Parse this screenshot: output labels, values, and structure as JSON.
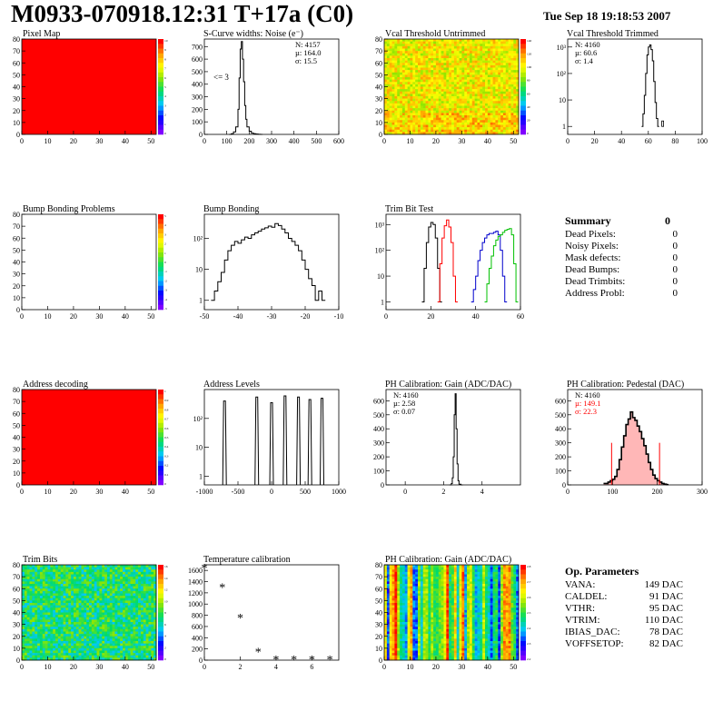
{
  "header": {
    "title": "M0933-070918.12:31 T+17a (C0)",
    "date": "Tue Sep 18 19:18:53 2007"
  },
  "colors": {
    "red": "#ff0000",
    "black": "#000000",
    "green": "#00c000",
    "blue": "#0000cc",
    "pink": "#ff9999"
  },
  "chart_data": [
    {
      "id": "pixel-map",
      "type": "heatmap",
      "title": "Pixel Map",
      "xlim": [
        0,
        52
      ],
      "ylim": [
        0,
        80
      ],
      "xticks": [
        "0",
        "10",
        "20",
        "30",
        "40",
        "50"
      ],
      "yticks": [
        "0",
        "10",
        "20",
        "30",
        "40",
        "50",
        "60",
        "70",
        "80"
      ],
      "fill": "uniform",
      "value": 10,
      "palette_ticks": [
        "10",
        "9",
        "8",
        "7",
        "6",
        "5",
        "4",
        "3",
        "2",
        "1",
        "0"
      ]
    },
    {
      "id": "scurve-noise",
      "type": "line",
      "title": "S-Curve widths: Noise (e⁻)",
      "xlim": [
        0,
        600
      ],
      "ylim": [
        0,
        760
      ],
      "xticks": [
        "0",
        "100",
        "200",
        "300",
        "400",
        "500",
        "600"
      ],
      "yticks": [
        "0",
        "100",
        "200",
        "300",
        "400",
        "500",
        "600",
        "700"
      ],
      "stats": [
        "N: 4157",
        "µ: 164.0",
        "σ: 15.5"
      ],
      "annotation": "<= 3",
      "x": [
        110,
        120,
        130,
        140,
        150,
        155,
        160,
        165,
        170,
        175,
        180,
        185,
        190,
        200,
        210,
        220,
        230,
        240,
        250
      ],
      "y": [
        0,
        5,
        20,
        60,
        200,
        450,
        680,
        740,
        600,
        420,
        230,
        120,
        60,
        25,
        10,
        5,
        3,
        1,
        0
      ]
    },
    {
      "id": "vcal-untrimmed",
      "type": "heatmap",
      "title": "Vcal Threshold Untrimmed",
      "xlim": [
        0,
        52
      ],
      "ylim": [
        0,
        80
      ],
      "xticks": [
        "0",
        "10",
        "20",
        "30",
        "40",
        "50"
      ],
      "yticks": [
        "0",
        "10",
        "20",
        "30",
        "40",
        "50",
        "60",
        "70",
        "80"
      ],
      "fill": "noisy",
      "dominant": "yellow-orange",
      "palette_ticks": [
        "140",
        "120",
        "100",
        "80",
        "60",
        "40",
        "20",
        "0"
      ]
    },
    {
      "id": "vcal-trimmed",
      "type": "line",
      "title": "Vcal Threshold Trimmed",
      "log_y": true,
      "xlim": [
        0,
        100
      ],
      "ylim": [
        0.5,
        2000
      ],
      "xticks": [
        "0",
        "20",
        "40",
        "60",
        "80",
        "100"
      ],
      "yticks": [
        "1",
        "10",
        "10²",
        "10³"
      ],
      "stats": [
        "N: 4160",
        "µ: 60.6",
        "σ:  1.4"
      ],
      "x": [
        55,
        56,
        57,
        58,
        59,
        60,
        61,
        62,
        63,
        64,
        65,
        66,
        67
      ],
      "y": [
        1,
        3,
        15,
        100,
        500,
        1000,
        1200,
        800,
        300,
        50,
        8,
        2,
        1
      ],
      "outlier": {
        "x": 70,
        "y": 1
      }
    },
    {
      "id": "bump-bonding-problems",
      "type": "heatmap",
      "title": "Bump Bonding Problems",
      "xlim": [
        0,
        52
      ],
      "ylim": [
        0,
        80
      ],
      "xticks": [
        "0",
        "10",
        "20",
        "30",
        "40",
        "50"
      ],
      "yticks": [
        "0",
        "10",
        "20",
        "30",
        "40",
        "50",
        "60",
        "70",
        "80"
      ],
      "fill": "empty",
      "palette_ticks": [
        "5",
        "4",
        "3",
        "2",
        "1",
        "0",
        "-1",
        "-2",
        "-3",
        "-4",
        "-5"
      ]
    },
    {
      "id": "bump-bonding",
      "type": "line",
      "title": "Bump Bonding",
      "log_y": true,
      "xlim": [
        -50,
        -10
      ],
      "ylim": [
        0.5,
        600
      ],
      "xticks": [
        "-50",
        "-40",
        "-30",
        "-20",
        "-10"
      ],
      "yticks": [
        "1",
        "10",
        "10²"
      ],
      "x": [
        -48,
        -47,
        -46,
        -45,
        -44,
        -43,
        -42,
        -41,
        -40,
        -39,
        -38,
        -37,
        -36,
        -35,
        -34,
        -33,
        -32,
        -31,
        -30,
        -29,
        -28,
        -27,
        -26,
        -25,
        -24,
        -23,
        -22,
        -21,
        -20,
        -19,
        -18,
        -17,
        -16,
        -15
      ],
      "y": [
        1,
        2,
        4,
        8,
        20,
        40,
        60,
        80,
        70,
        90,
        110,
        100,
        130,
        150,
        170,
        200,
        220,
        250,
        230,
        300,
        260,
        200,
        150,
        100,
        80,
        60,
        40,
        20,
        10,
        5,
        3,
        1,
        2,
        1
      ]
    },
    {
      "id": "trim-bit-test",
      "type": "line",
      "title": "Trim Bit Test",
      "log_y": true,
      "xlim": [
        0,
        60
      ],
      "ylim": [
        0.5,
        2500
      ],
      "xticks": [
        "0",
        "20",
        "40",
        "60"
      ],
      "yticks": [
        "1",
        "10",
        "10²",
        "10³"
      ],
      "series": [
        {
          "color": "black",
          "x": [
            16,
            17,
            18,
            19,
            20,
            21,
            22,
            23,
            24
          ],
          "y": [
            1,
            20,
            200,
            800,
            1200,
            1000,
            300,
            20,
            1
          ]
        },
        {
          "color": "red",
          "x": [
            23,
            24,
            25,
            26,
            27,
            28,
            29,
            30,
            31
          ],
          "y": [
            1,
            30,
            300,
            900,
            1500,
            800,
            200,
            10,
            1
          ]
        },
        {
          "color": "blue",
          "x": [
            38,
            39,
            40,
            41,
            42,
            43,
            44,
            45,
            46,
            47,
            48,
            49,
            50,
            51,
            52,
            53
          ],
          "y": [
            1,
            3,
            10,
            40,
            100,
            200,
            300,
            400,
            450,
            450,
            500,
            550,
            400,
            100,
            10,
            1
          ]
        },
        {
          "color": "green",
          "x": [
            44,
            45,
            46,
            47,
            48,
            49,
            50,
            51,
            52,
            53,
            54,
            55,
            56,
            57,
            58
          ],
          "y": [
            1,
            5,
            20,
            60,
            150,
            250,
            350,
            400,
            500,
            600,
            650,
            700,
            400,
            30,
            1
          ]
        }
      ]
    },
    {
      "id": "address-decoding",
      "type": "heatmap",
      "title": "Address decoding",
      "xlim": [
        0,
        52
      ],
      "ylim": [
        0,
        80
      ],
      "xticks": [
        "0",
        "10",
        "20",
        "30",
        "40",
        "50"
      ],
      "yticks": [
        "0",
        "10",
        "20",
        "30",
        "40",
        "50",
        "60",
        "70",
        "80"
      ],
      "fill": "uniform",
      "value": 1,
      "palette_ticks": [
        "1",
        "0.9",
        "0.8",
        "0.7",
        "0.6",
        "0.5",
        "0.4",
        "0.3",
        "0.2",
        "0.1",
        "0"
      ]
    },
    {
      "id": "address-levels",
      "type": "line",
      "title": "Address Levels",
      "log_y": true,
      "xlim": [
        -1000,
        1000
      ],
      "ylim": [
        0.5,
        1000
      ],
      "xticks": [
        "-1000",
        "-500",
        "0",
        "500",
        "1000"
      ],
      "yticks": [
        "1",
        "10",
        "10²"
      ],
      "peaks": [
        {
          "x": -700,
          "y": 400
        },
        {
          "x": -220,
          "y": 550
        },
        {
          "x": 0,
          "y": 350
        },
        {
          "x": 200,
          "y": 600
        },
        {
          "x": 400,
          "y": 550
        },
        {
          "x": 570,
          "y": 450
        },
        {
          "x": 750,
          "y": 500
        }
      ]
    },
    {
      "id": "ph-gain",
      "type": "line",
      "title": "PH Calibration: Gain (ADC/DAC)",
      "xlim": [
        -1,
        6
      ],
      "ylim": [
        0,
        680
      ],
      "xticks": [
        "0",
        "2",
        "4"
      ],
      "yticks": [
        "0",
        "100",
        "200",
        "300",
        "400",
        "500",
        "600"
      ],
      "stats": [
        "N: 4160",
        "µ: 2.58",
        "σ: 0.07"
      ],
      "x": [
        2.3,
        2.4,
        2.45,
        2.5,
        2.55,
        2.6,
        2.65,
        2.7,
        2.75,
        2.8,
        2.9
      ],
      "y": [
        0,
        10,
        50,
        200,
        500,
        650,
        400,
        150,
        30,
        5,
        0
      ]
    },
    {
      "id": "ph-pedestal",
      "type": "line",
      "title": "PH Calibration: Pedestal (DAC)",
      "xlim": [
        0,
        300
      ],
      "ylim": [
        0,
        680
      ],
      "xticks": [
        "0",
        "100",
        "200",
        "300"
      ],
      "yticks": [
        "0",
        "100",
        "200",
        "300",
        "400",
        "500",
        "600"
      ],
      "stats": [
        "N: 4160",
        "µ: 149.1",
        "σ: 22.3"
      ],
      "stat_colors": [
        "black",
        "red",
        "red"
      ],
      "cut_lines": [
        98,
        205
      ],
      "x": [
        80,
        90,
        95,
        100,
        105,
        110,
        115,
        120,
        125,
        130,
        135,
        140,
        145,
        150,
        155,
        160,
        165,
        170,
        175,
        180,
        185,
        190,
        195,
        200,
        205,
        210,
        215,
        220
      ],
      "y": [
        10,
        20,
        30,
        40,
        60,
        110,
        180,
        270,
        350,
        430,
        470,
        520,
        480,
        460,
        420,
        380,
        330,
        280,
        220,
        160,
        110,
        70,
        45,
        30,
        20,
        10,
        5,
        2
      ]
    },
    {
      "id": "trim-bits",
      "type": "heatmap",
      "title": "Trim Bits",
      "xlim": [
        0,
        52
      ],
      "ylim": [
        0,
        80
      ],
      "xticks": [
        "0",
        "10",
        "20",
        "30",
        "40",
        "50"
      ],
      "yticks": [
        "0",
        "10",
        "20",
        "30",
        "40",
        "50",
        "60",
        "70",
        "80"
      ],
      "fill": "noisy",
      "dominant": "green",
      "palette_ticks": [
        "16",
        "14",
        "12",
        "10",
        "8",
        "6",
        "4",
        "2",
        "0"
      ]
    },
    {
      "id": "temperature-calibration",
      "type": "scatter",
      "title": "Temperature calibration",
      "xlim": [
        0,
        7.5
      ],
      "ylim": [
        0,
        1700
      ],
      "xticks": [
        "0",
        "2",
        "4",
        "6"
      ],
      "yticks": [
        "0",
        "200",
        "400",
        "600",
        "800",
        "1000",
        "1200",
        "1400",
        "1600"
      ],
      "x": [
        0,
        1,
        2,
        3,
        4,
        5,
        6,
        7
      ],
      "y": [
        1650,
        1300,
        760,
        150,
        20,
        20,
        20,
        20
      ]
    },
    {
      "id": "ph-gain-map",
      "type": "heatmap",
      "title": "PH Calibration: Gain (ADC/DAC)",
      "xlim": [
        0,
        52
      ],
      "ylim": [
        0,
        80
      ],
      "xticks": [
        "0",
        "10",
        "20",
        "30",
        "40",
        "50"
      ],
      "yticks": [
        "0",
        "10",
        "20",
        "30",
        "40",
        "50",
        "60",
        "70",
        "80"
      ],
      "fill": "columns",
      "dominant": "yellow-green",
      "palette_ticks": [
        "2.8",
        "2.7",
        "2.6",
        "2.5",
        "2.4",
        "2.3",
        "2.2"
      ]
    }
  ],
  "summary": {
    "title": "Summary",
    "title_value": "0",
    "rows": [
      {
        "label": "Dead Pixels:",
        "value": "0"
      },
      {
        "label": "Noisy Pixels:",
        "value": "0"
      },
      {
        "label": "Mask defects:",
        "value": "0"
      },
      {
        "label": "Dead Bumps:",
        "value": "0"
      },
      {
        "label": "Dead Trimbits:",
        "value": "0"
      },
      {
        "label": "Address Probl:",
        "value": "0"
      }
    ]
  },
  "op_parameters": {
    "title": "Op. Parameters",
    "rows": [
      {
        "label": "VANA:",
        "value": "149 DAC"
      },
      {
        "label": "CALDEL:",
        "value": "91 DAC"
      },
      {
        "label": "VTHR:",
        "value": "95 DAC"
      },
      {
        "label": "VTRIM:",
        "value": "110 DAC"
      },
      {
        "label": "IBIAS_DAC:",
        "value": "78 DAC"
      },
      {
        "label": "VOFFSETOP:",
        "value": "82 DAC"
      }
    ]
  }
}
